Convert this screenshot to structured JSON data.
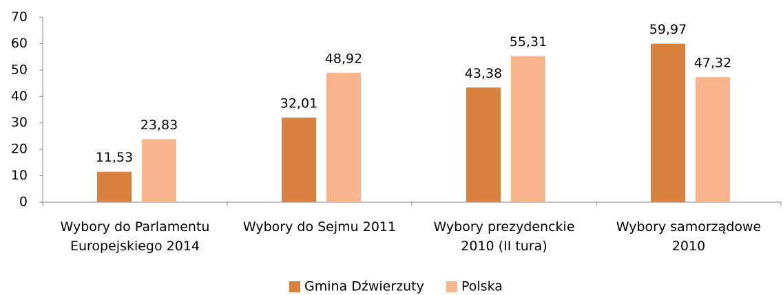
{
  "chart_data": {
    "type": "bar",
    "categories": [
      "Wybory do Parlamentu Europejskiego 2014",
      "Wybory do Sejmu 2011",
      "Wybory prezydenckie 2010 (II tura)",
      "Wybory samorządowe 2010"
    ],
    "series": [
      {
        "name": "Gmina Dźwierzuty",
        "color": "#d9823f",
        "values": [
          11.53,
          32.01,
          43.38,
          59.97
        ],
        "value_labels": [
          "11,53",
          "32,01",
          "43,38",
          "59,97"
        ]
      },
      {
        "name": "Polska",
        "color": "#f8b48c",
        "values": [
          23.83,
          48.92,
          55.31,
          47.32
        ],
        "value_labels": [
          "23,83",
          "48,92",
          "55,31",
          "47,32"
        ]
      }
    ],
    "ylim": [
      0,
      70
    ],
    "yticks": [
      0,
      10,
      20,
      30,
      40,
      50,
      60,
      70
    ],
    "grid": false,
    "legend": "bottom"
  }
}
